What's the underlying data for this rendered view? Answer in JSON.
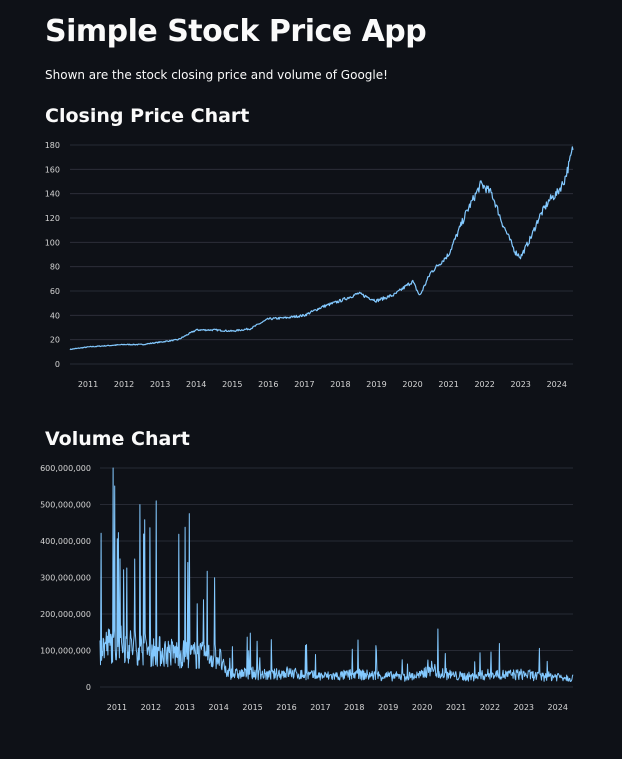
{
  "app": {
    "title": "Simple Stock Price App",
    "subtitle": "Shown are the stock closing price and volume of Google!"
  },
  "sections": {
    "closing_title": "Closing Price Chart",
    "volume_title": "Volume Chart"
  },
  "colors": {
    "background": "#0e1117",
    "line": "#83c9ff",
    "grid": "#31333f",
    "text": "#fafafa"
  },
  "chart_data": [
    {
      "type": "line",
      "series": [
        {
          "x": [
            2010.5,
            2011.0,
            2011.5,
            2012.0,
            2012.5,
            2013.0,
            2013.5,
            2014.0,
            2014.5,
            2015.0,
            2015.5,
            2016.0,
            2016.5,
            2017.0,
            2017.5,
            2018.0,
            2018.5,
            2019.0,
            2019.5,
            2020.0,
            2020.2,
            2020.5,
            2021.0,
            2021.5,
            2021.9,
            2022.2,
            2022.5,
            2022.85,
            2023.0,
            2023.3,
            2023.5,
            2023.8,
            2024.0,
            2024.2,
            2024.35,
            2024.45
          ],
          "y": [
            12,
            14,
            15,
            16,
            16,
            18,
            20,
            28,
            28,
            27,
            29,
            37,
            38,
            40,
            47,
            52,
            58,
            52,
            57,
            68,
            56,
            75,
            90,
            125,
            148,
            140,
            115,
            92,
            88,
            105,
            120,
            135,
            140,
            150,
            165,
            178
          ]
        }
      ],
      "xlim": [
        2010.5,
        2024.45
      ],
      "ylim": [
        0,
        180
      ],
      "x_ticks": [
        "2011",
        "2012",
        "2013",
        "2014",
        "2015",
        "2016",
        "2017",
        "2018",
        "2019",
        "2020",
        "2021",
        "2022",
        "2023",
        "2024"
      ],
      "y_ticks": [
        "0",
        "20",
        "40",
        "60",
        "80",
        "100",
        "120",
        "140",
        "160",
        "180"
      ],
      "grid": true
    },
    {
      "type": "line",
      "series": [
        {
          "x": [
            2010.5,
            2011.0,
            2011.5,
            2012.0,
            2012.5,
            2013.0,
            2013.5,
            2014.0,
            2014.2,
            2014.5,
            2015.0,
            2015.5,
            2016.0,
            2016.5,
            2017.0,
            2017.5,
            2018.0,
            2018.5,
            2019.0,
            2019.5,
            2020.0,
            2020.2,
            2020.5,
            2021.0,
            2021.5,
            2022.0,
            2022.5,
            2023.0,
            2023.5,
            2024.0,
            2024.45
          ],
          "y": [
            110000000,
            120000000,
            110000000,
            100000000,
            95000000,
            90000000,
            85000000,
            85000000,
            40000000,
            35000000,
            38000000,
            32000000,
            40000000,
            33000000,
            30000000,
            30000000,
            35000000,
            32000000,
            30000000,
            28000000,
            32000000,
            55000000,
            40000000,
            30000000,
            28000000,
            35000000,
            33000000,
            35000000,
            28000000,
            30000000,
            25000000
          ]
        }
      ],
      "xlim": [
        2010.5,
        2024.45
      ],
      "ylim": [
        0,
        600000000
      ],
      "x_ticks": [
        "2011",
        "2012",
        "2013",
        "2014",
        "2015",
        "2016",
        "2017",
        "2018",
        "2019",
        "2020",
        "2021",
        "2022",
        "2023",
        "2024"
      ],
      "y_ticks": [
        "0",
        "100,000,000",
        "200,000,000",
        "300,000,000",
        "400,000,000",
        "500,000,000",
        "600,000,000"
      ],
      "grid": true
    }
  ]
}
